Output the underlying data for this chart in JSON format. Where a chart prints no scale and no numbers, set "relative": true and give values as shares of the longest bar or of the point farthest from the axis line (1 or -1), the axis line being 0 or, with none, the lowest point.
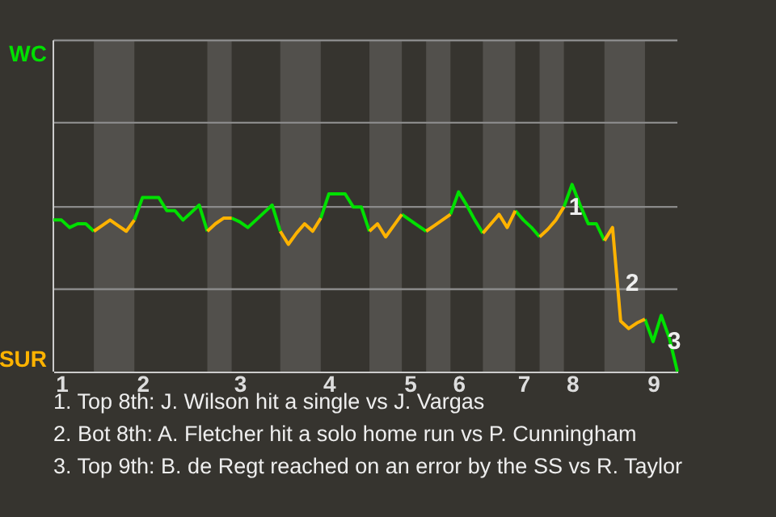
{
  "chart_data": {
    "type": "line",
    "relative": true,
    "categories": [
      null,
      "1",
      null,
      null,
      null,
      null,
      null,
      null,
      null,
      null,
      null,
      "2",
      null,
      null,
      null,
      null,
      null,
      null,
      null,
      null,
      null,
      null,
      null,
      "3",
      null,
      null,
      null,
      null,
      null,
      null,
      null,
      null,
      null,
      null,
      "4",
      null,
      null,
      null,
      null,
      null,
      null,
      null,
      null,
      null,
      "5",
      null,
      null,
      null,
      null,
      null,
      "6",
      null,
      null,
      null,
      null,
      null,
      null,
      null,
      "7",
      null,
      null,
      null,
      null,
      null,
      "8",
      null,
      null,
      null,
      null,
      null,
      null,
      null,
      null,
      null,
      "9",
      null,
      null,
      null
    ],
    "marker": "none",
    "line_style": "solid",
    "ref_lines": [
      {
        "axis": "y",
        "value": 0.44,
        "color": "#8a8a8a"
      },
      {
        "axis": "y",
        "value": 0.88,
        "color": "#8a8a8a"
      },
      {
        "axis": "y",
        "value": 1.33,
        "color": "#8a8a8a"
      },
      {
        "axis": "y",
        "value": 1.77,
        "color": "#8a8a8a"
      }
    ],
    "series": [
      {
        "color": "#00e000",
        "values": [
          0.81,
          0.81,
          0.77,
          0.79,
          0.79,
          0.75,
          null,
          null,
          null,
          null,
          0.81,
          0.93,
          0.93,
          0.93,
          0.86,
          0.86,
          0.81,
          0.85,
          0.89,
          0.75,
          null,
          null,
          0.82,
          0.8,
          0.77,
          0.81,
          0.85,
          0.89,
          0.75,
          null,
          null,
          null,
          null,
          0.82,
          0.95,
          0.95,
          0.95,
          0.88,
          0.88,
          0.75,
          null,
          null,
          null,
          0.84,
          0.81,
          0.78,
          0.75,
          null,
          null,
          0.84,
          0.96,
          0.89,
          0.81,
          0.74,
          null,
          null,
          null,
          0.86,
          0.81,
          0.77,
          0.72,
          null,
          null,
          0.88,
          1,
          0.89,
          0.79,
          0.79,
          0.7,
          null,
          null,
          null,
          null,
          0.28,
          0.16,
          0.3,
          0.18,
          0
        ]
      },
      {
        "color": "#ffb300",
        "values": [
          null,
          null,
          null,
          null,
          null,
          0.75,
          0.78,
          0.81,
          0.78,
          0.75,
          0.81,
          null,
          null,
          null,
          null,
          null,
          null,
          null,
          null,
          0.75,
          0.79,
          0.82,
          0.82,
          null,
          null,
          null,
          null,
          null,
          0.75,
          0.68,
          0.74,
          0.79,
          0.75,
          0.82,
          null,
          null,
          null,
          null,
          null,
          0.75,
          0.79,
          0.72,
          0.78,
          0.84,
          null,
          null,
          0.75,
          0.78,
          0.81,
          0.84,
          null,
          null,
          null,
          0.74,
          0.79,
          0.84,
          0.77,
          0.86,
          null,
          null,
          0.72,
          0.76,
          0.81,
          0.88,
          null,
          null,
          null,
          null,
          0.7,
          0.77,
          0.27,
          0.23,
          0.26,
          0.28,
          null,
          null,
          null,
          null
        ]
      }
    ],
    "annotations": [
      "WC",
      "SUR",
      "1",
      "2",
      "3",
      "1. Top 8th: J. Wilson hit a single vs J. Vargas",
      "2. Bot 8th: A. Fletcher hit a solo home run vs P. Cunningham",
      "3. Top 9th: B. de Regt reached on an error by the SS vs R. Taylor"
    ]
  }
}
